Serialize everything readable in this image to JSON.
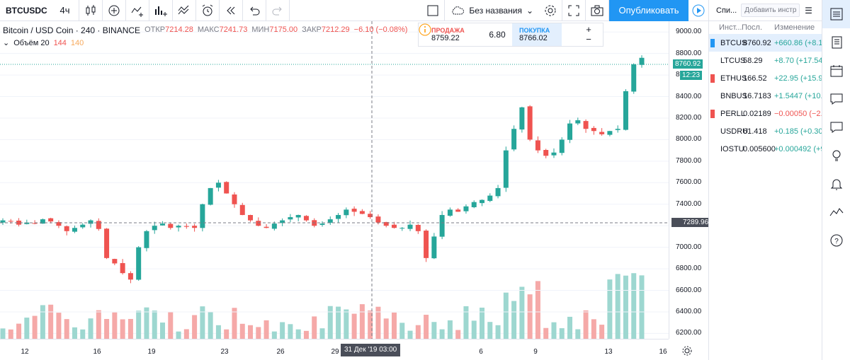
{
  "toolbar": {
    "symbol": "BTCUSDC",
    "interval": "4ч",
    "layout_name": "Без названия",
    "publish_label": "Опубликовать"
  },
  "legend": {
    "title": "Bitcoin / USD Coin · 240 · BINANCE",
    "open_key": "ОТКР",
    "open_val": "7214.28",
    "high_key": "МАКС",
    "high_val": "7241.73",
    "low_key": "МИН",
    "low_val": "7175.00",
    "close_key": "ЗАКР",
    "close_val": "7212.29",
    "change": "−6.10 (−0.08%)",
    "volume_label": "Объём 20",
    "volume_val1": "144",
    "volume_val2": "140"
  },
  "trade": {
    "sell_label": "ПРОДАЖА",
    "sell_price": "8759.22",
    "spread": "6.80",
    "buy_label": "ПОКУПКА",
    "buy_price": "8766.02"
  },
  "price_scale": [
    "9000.00",
    "8800.00",
    "8600.00",
    "8400.00",
    "8200.00",
    "8000.00",
    "7800.00",
    "7600.00",
    "7400.00",
    "7200.00",
    "7000.00",
    "6800.00",
    "6600.00",
    "6400.00",
    "6200.00"
  ],
  "last_price": "8760.92",
  "countdown": "12:23",
  "crosshair_price": "7289.96",
  "crosshair_date": "31 Дек '19   03:00",
  "time_labels": [
    "12",
    "16",
    "19",
    "23",
    "26",
    "29",
    "6",
    "9",
    "13",
    "16"
  ],
  "watchlist": {
    "tab": "Спи...",
    "add_placeholder": "Добавить инстр",
    "headers": [
      "Инст...",
      "Посл.",
      "Изменение"
    ],
    "rows": [
      {
        "symbol": "BTCUS",
        "last": "8760.92",
        "change": "+660.86 (+8.1",
        "dir": "up",
        "flag": "#2196f3"
      },
      {
        "symbol": "LTCUS",
        "last": "58.29",
        "change": "+8.70 (+17.54",
        "dir": "up",
        "flag": ""
      },
      {
        "symbol": "ETHUS",
        "last": "166.52",
        "change": "+22.95 (+15.9",
        "dir": "up",
        "flag": "#ef5350"
      },
      {
        "symbol": "BNBUS",
        "last": "16.7183",
        "change": "+1.5447 (+10.",
        "dir": "up",
        "flag": ""
      },
      {
        "symbol": "PERLL",
        "last": "0.02189",
        "change": "−0.00050 (−2.",
        "dir": "dn",
        "flag": "#ef5350"
      },
      {
        "symbol": "USDRU",
        "last": "61.418",
        "change": "+0.185 (+0.30",
        "dir": "up",
        "flag": ""
      },
      {
        "symbol": "IOSTU",
        "last": "0.005600",
        "change": "+0.000492 (+9",
        "dir": "up",
        "flag": ""
      }
    ]
  },
  "colors": {
    "up": "#26a69a",
    "down": "#ef5350",
    "accent": "#2196f3"
  },
  "chart_data": {
    "type": "candlestick",
    "ylim": [
      6150,
      9100
    ],
    "close_series": [
      7250,
      7240,
      7210,
      7230,
      7220,
      7260,
      7240,
      7200,
      7150,
      7180,
      7210,
      7250,
      7170,
      6900,
      6850,
      6760,
      6700,
      7000,
      7150,
      7200,
      7220,
      7180,
      7200,
      7190,
      7180,
      7400,
      7550,
      7600,
      7500,
      7400,
      7300,
      7250,
      7200,
      7180,
      7220,
      7250,
      7280,
      7300,
      7250,
      7200,
      7220,
      7260,
      7300,
      7350,
      7330,
      7310,
      7280,
      7230,
      7200,
      7180,
      7180,
      7210,
      7150,
      6900,
      7100,
      7300,
      7350,
      7330,
      7380,
      7420,
      7440,
      7480,
      7550,
      7900,
      8100,
      8300,
      8000,
      7900,
      7850,
      7880,
      8000,
      8150,
      8180,
      8100,
      8080,
      8050,
      8080,
      8100,
      8450,
      8700,
      8760
    ],
    "volume_note": "volume histogram below price"
  }
}
